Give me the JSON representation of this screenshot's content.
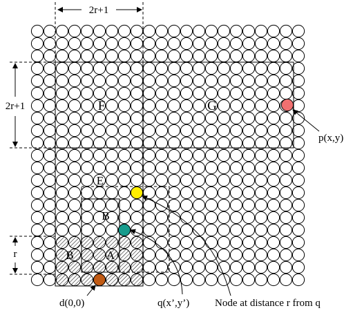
{
  "labels": {
    "top_width": "2r+1",
    "left_height": "2r+1",
    "r_mark": "r",
    "region_F": "F",
    "region_G": "G",
    "region_E": "E",
    "region_B_upper": "B",
    "region_B_lower": "B",
    "region_A": "A",
    "point_p": "p(x,y)",
    "point_d": "d(0,0)",
    "point_q": "q(x’,y’)",
    "node_caption": "Node at distance r from q"
  },
  "grid": {
    "columns": 22,
    "rows": 21
  },
  "colors": {
    "node_stroke": "#000000",
    "node_p": "#f07070",
    "node_yellow": "#ffee00",
    "node_q": "#169b8c",
    "node_d": "#c05a14"
  }
}
